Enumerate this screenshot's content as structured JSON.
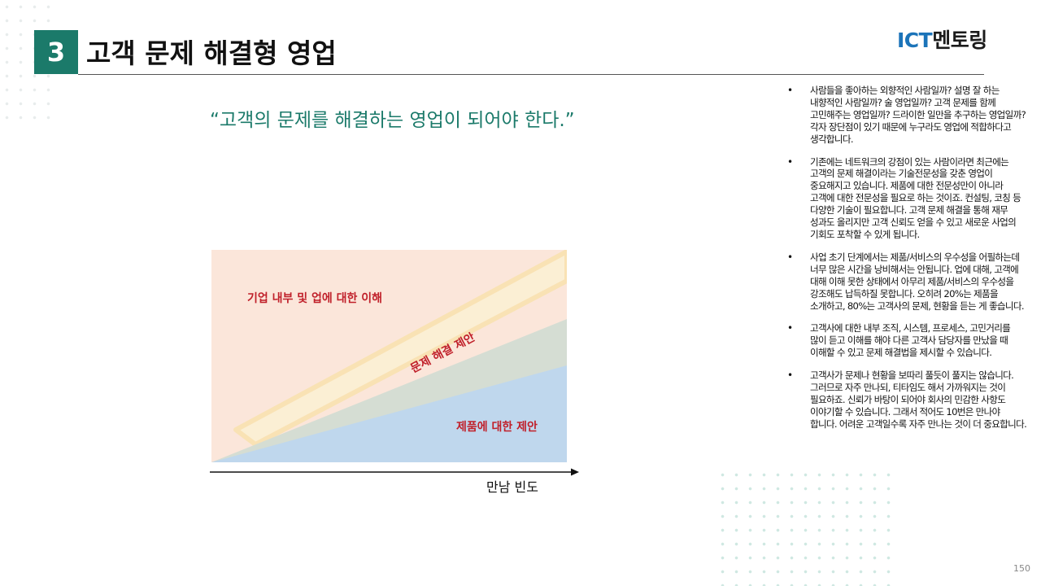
{
  "header": {
    "section_number": "3",
    "title": "고객 문제 해결형 영업",
    "logo_ict": "ICT",
    "logo_rest": "멘토링"
  },
  "quote": "“고객의 문제를 해결하는 영업이 되어야 한다.”",
  "diagram": {
    "top_label": "기업 내부 및 업에 대한 이해",
    "middle_label": "문제 해결 제안",
    "bottom_label": "제품에 대한 제안",
    "x_axis_label": "만남 빈도",
    "colors": {
      "background": "#fbe6da",
      "stripe": "#fbefd4",
      "stripe_edge": "#f9e2b4",
      "green_band": "#d5ddd3",
      "blue_band": "#bfd7ed",
      "label_red": "#c0202a"
    }
  },
  "bullets": [
    "사람들을 좋아하는 외향적인 사람일까? 설명 잘 하는 내향적인 사람일까? 술 영업일까? 고객 문제를 함께 고민해주는 영업일까? 드라이한 일만을 추구하는 영업일까? 각자 장단점이 있기 때문에 누구라도 영업에 적합하다고 생각합니다.",
    "기존에는 네트워크의 강점이 있는 사람이라면 최근에는 고객의 문제 해결이라는 기술전문성을 갖춘 영업이 중요해지고 있습니다. 제품에 대한 전문성만이 아니라 고객에 대한 전문성을 필요로 하는 것이죠. 컨설팅, 코칭 등 다양한 기술이 필요합니다. 고객 문제 해결을 통해 재무 성과도 올리지만 고객 신뢰도 얻을 수 있고 새로운 사업의 기회도 포착할 수 있게 됩니다.",
    "사업 초기 단계에서는 제품/서비스의 우수성을 어필하는데 너무 많은 시간을 낭비해서는 안됩니다. 업에 대해, 고객에 대해 이해 못한 상태에서 아무리 제품/서비스의 우수성을 강조해도 납득하질 못합니다. 오히려 20%는 제품을 소개하고, 80%는 고객사의 문제, 현황을 듣는 게 좋습니다.",
    "고객사에 대한 내부 조직, 시스템, 프로세스, 고민거리를 많이 듣고 이해를 해야 다른 고객사 담당자를 만났을 때 이해할 수 있고 문제 해결법을 제시할 수 있습니다.",
    "고객사가 문제나 현황을 보따리 풀듯이 풀지는 않습니다. 그러므로 자주 만나되, 티타임도 해서 가까워지는 것이 필요하죠. 신뢰가 바탕이 되어야 회사의 민감한 사항도 이야기할 수 있습니다. 그래서 적어도 10번은 만나야 합니다. 어려운 고객일수록 자주 만나는 것이 더 중요합니다."
  ],
  "bullet_symbol": "•",
  "page_number": "150"
}
